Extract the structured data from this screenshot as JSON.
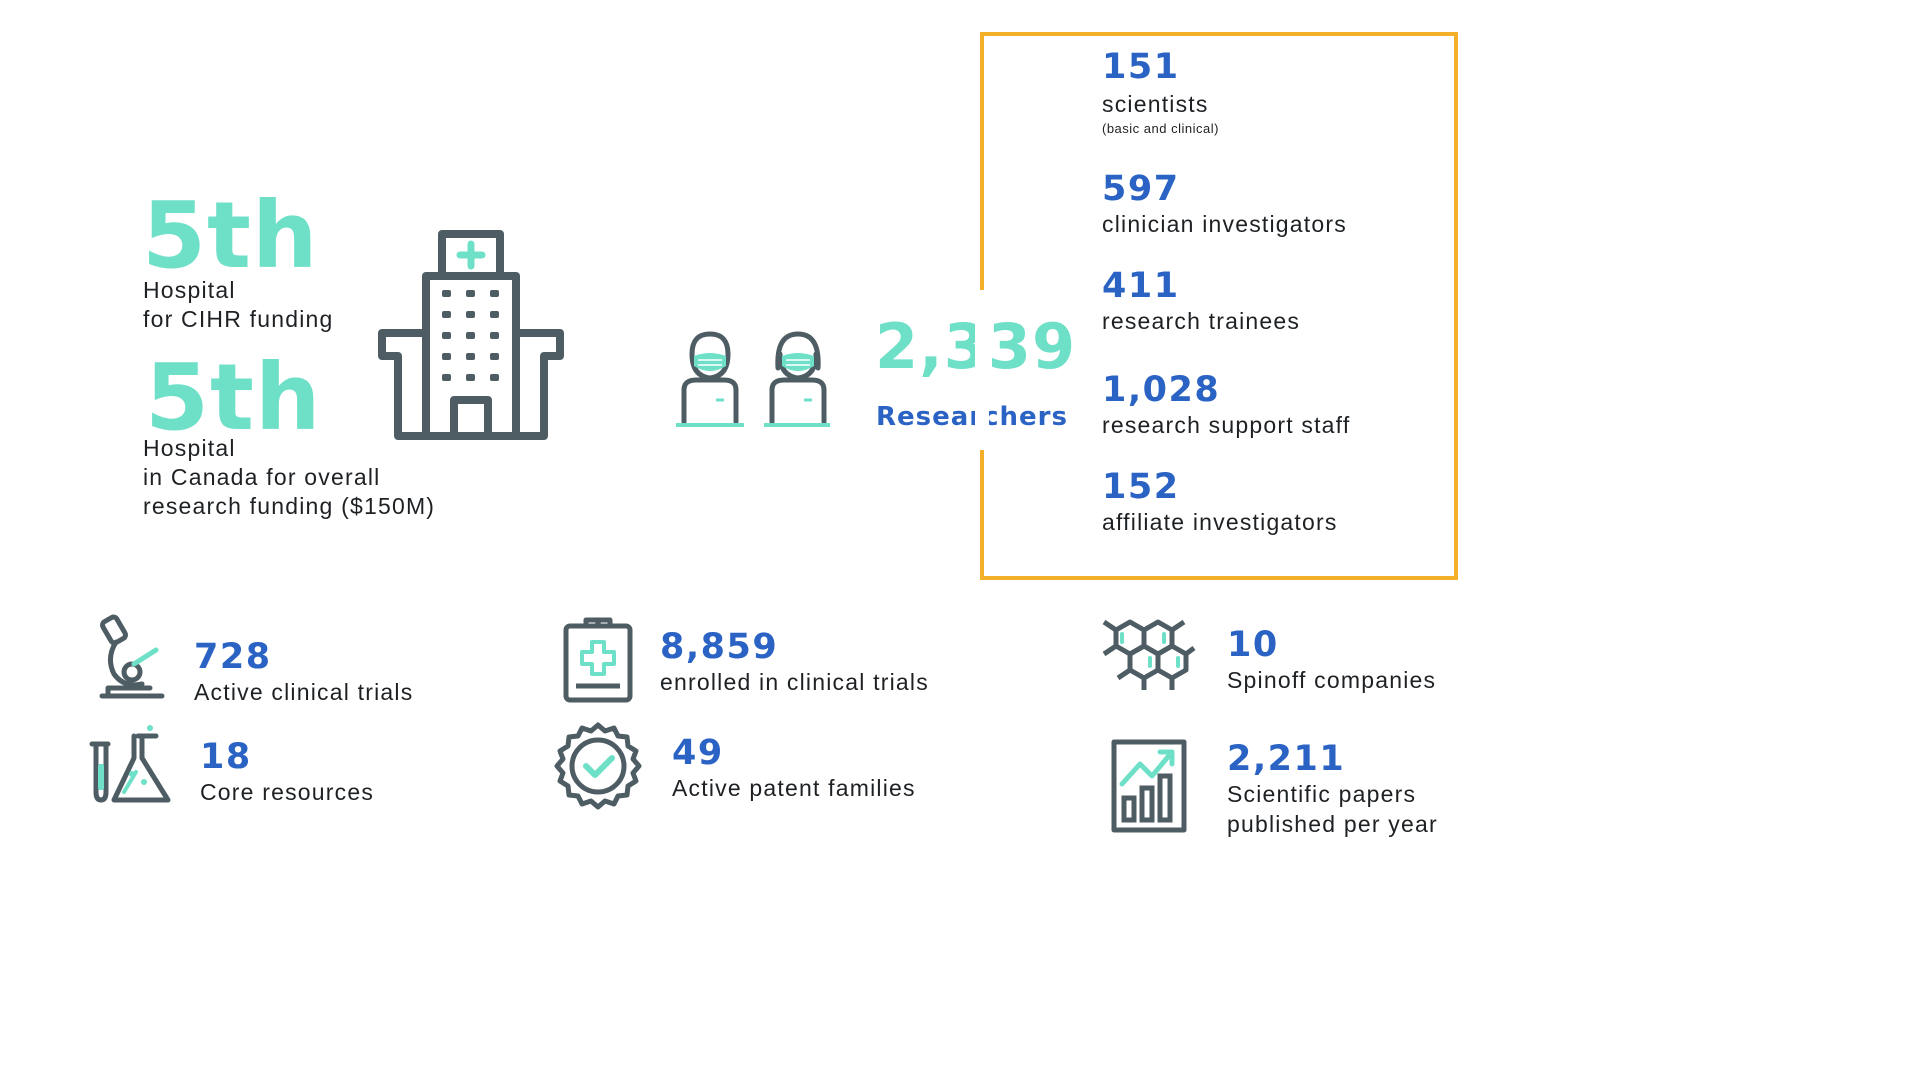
{
  "rankings": [
    {
      "rank": "5th",
      "lines": [
        "Hospital",
        "for CIHR funding"
      ]
    },
    {
      "rank": "5th",
      "lines": [
        "Hospital",
        "in Canada for overall",
        "research funding ($150M)"
      ]
    }
  ],
  "researchers": {
    "total": "2,339",
    "label": "Researchers",
    "breakdown": [
      {
        "value": "151",
        "label": "scientists",
        "note": "(basic and clinical)"
      },
      {
        "value": "597",
        "label": "clinician investigators"
      },
      {
        "value": "411",
        "label": "research trainees"
      },
      {
        "value": "1,028",
        "label": "research support staff"
      },
      {
        "value": "152",
        "label": "affiliate investigators"
      }
    ]
  },
  "stats": [
    {
      "value": "728",
      "label": "Active clinical trials",
      "icon": "microscope-icon"
    },
    {
      "value": "8,859",
      "label": "enrolled in clinical trials",
      "icon": "clipboard-cross-icon"
    },
    {
      "value": "10",
      "label": "Spinoff companies",
      "icon": "molecule-hexagon-icon"
    },
    {
      "value": "18",
      "label": "Core resources",
      "icon": "lab-flasks-icon"
    },
    {
      "value": "49",
      "label": "Active patent families",
      "icon": "certified-seal-icon"
    },
    {
      "value": "2,211",
      "label": "Scientific papers",
      "label2": "published per year",
      "icon": "growth-chart-icon"
    }
  ],
  "colors": {
    "teal": "#6fe0c8",
    "blue": "#2a63c4",
    "gray": "#4e5c63",
    "orange": "#f5b02a"
  }
}
